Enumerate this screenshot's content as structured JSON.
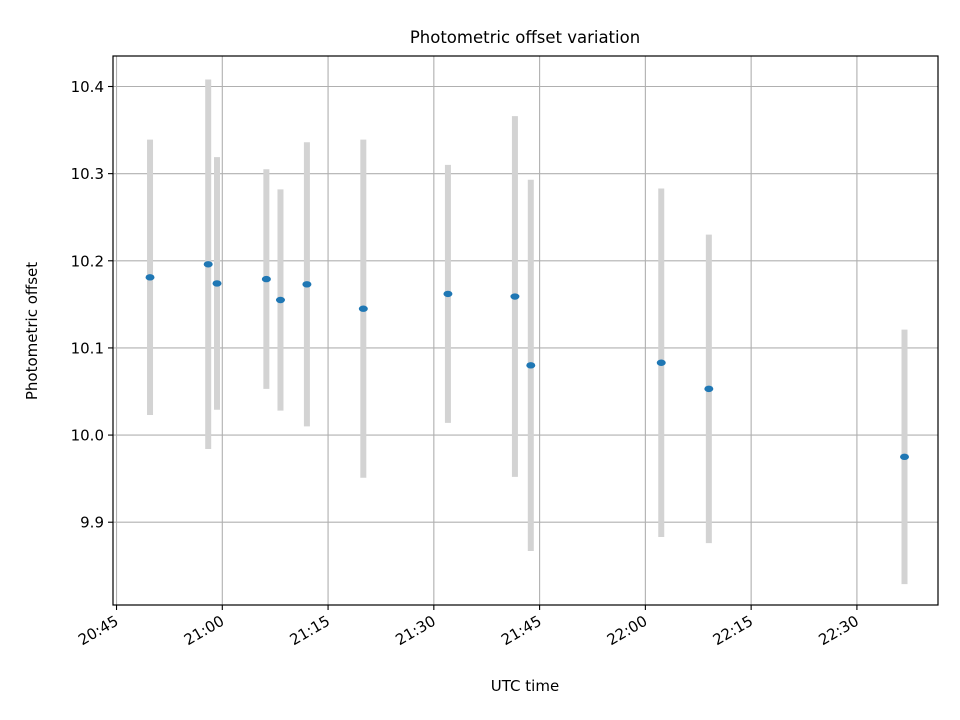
{
  "chart_data": {
    "type": "scatter",
    "title": "Photometric offset variation",
    "xlabel": "UTC time",
    "ylabel": "Photometric offset",
    "xlim": [
      "20:44:30",
      "22:41:30"
    ],
    "ylim": [
      9.805,
      10.435
    ],
    "grid": true,
    "x_ticks": [
      "20:45",
      "21:00",
      "21:15",
      "21:30",
      "21:45",
      "22:00",
      "22:15",
      "22:30"
    ],
    "y_ticks": [
      "9.9",
      "10.0",
      "10.1",
      "10.2",
      "10.3",
      "10.4"
    ],
    "colors": {
      "point": "#1f77b4",
      "errorbar": "#d3d3d3",
      "grid": "#b0b0b0",
      "axes": "#000000"
    },
    "series": [
      {
        "points": [
          {
            "x": "20:49:45",
            "y": 10.181,
            "yerr": 0.158
          },
          {
            "x": "20:58:00",
            "y": 10.196,
            "yerr": 0.212
          },
          {
            "x": "20:59:15",
            "y": 10.174,
            "yerr": 0.145
          },
          {
            "x": "21:06:15",
            "y": 10.179,
            "yerr": 0.126
          },
          {
            "x": "21:08:15",
            "y": 10.155,
            "yerr": 0.127
          },
          {
            "x": "21:12:00",
            "y": 10.173,
            "yerr": 0.163
          },
          {
            "x": "21:20:00",
            "y": 10.145,
            "yerr": 0.194
          },
          {
            "x": "21:32:00",
            "y": 10.162,
            "yerr": 0.148
          },
          {
            "x": "21:41:30",
            "y": 10.159,
            "yerr": 0.207
          },
          {
            "x": "21:43:45",
            "y": 10.08,
            "yerr": 0.213
          },
          {
            "x": "22:02:15",
            "y": 10.083,
            "yerr": 0.2
          },
          {
            "x": "22:09:00",
            "y": 10.053,
            "yerr": 0.177
          },
          {
            "x": "22:36:45",
            "y": 9.975,
            "yerr": 0.146
          }
        ]
      }
    ]
  }
}
